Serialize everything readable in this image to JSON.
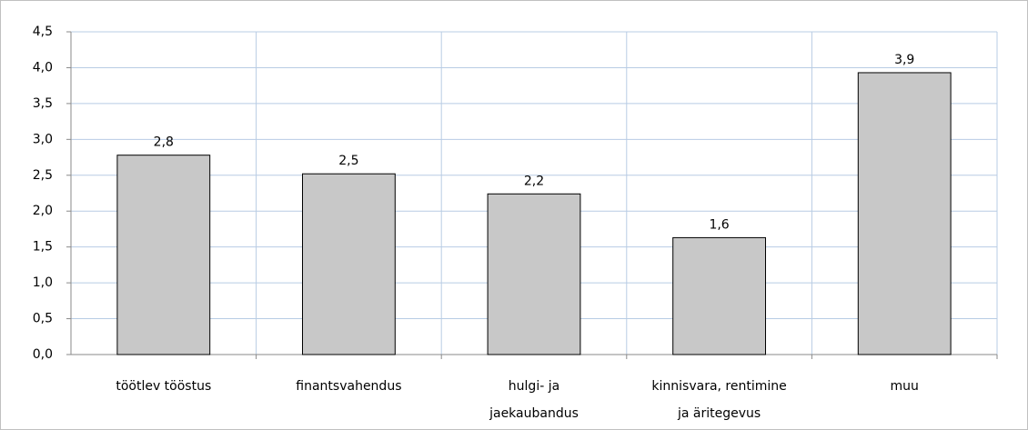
{
  "chart_data": {
    "type": "bar",
    "categories": [
      "töötlev tööstus",
      "finantsvahendus",
      "hulgi- ja\njaekaubandus",
      "kinnisvara, rentimine\nja äritegevus",
      "muu"
    ],
    "values": [
      2.78,
      2.52,
      2.24,
      1.63,
      3.93
    ],
    "value_labels": [
      "2,8",
      "2,5",
      "2,2",
      "1,6",
      "3,9"
    ],
    "color": "#c8c8c8",
    "ylim": [
      0,
      4.5
    ],
    "yticks": [
      {
        "value": 0,
        "label": "0,0"
      },
      {
        "value": 0.5,
        "label": "0,5"
      },
      {
        "value": 1,
        "label": "1,0"
      },
      {
        "value": 1.5,
        "label": "1,5"
      },
      {
        "value": 2,
        "label": "2,0"
      },
      {
        "value": 2.5,
        "label": "2,5"
      },
      {
        "value": 3,
        "label": "3,0"
      },
      {
        "value": 3.5,
        "label": "3,5"
      },
      {
        "value": 4,
        "label": "4,0"
      },
      {
        "value": 4.5,
        "label": "4,5"
      }
    ],
    "grid": true
  }
}
